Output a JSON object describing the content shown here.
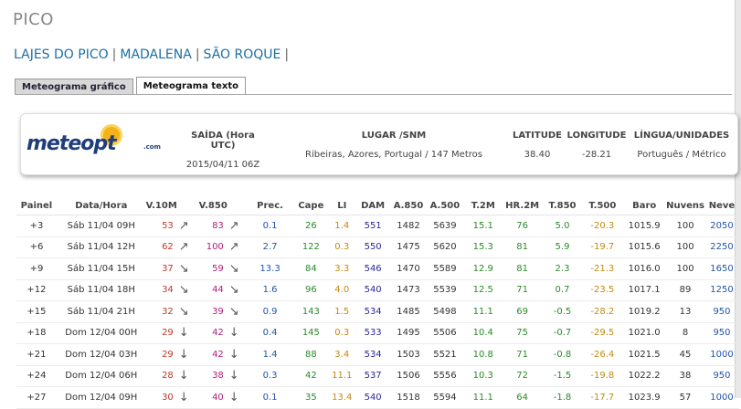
{
  "site_title": "PICO",
  "nav": {
    "items": [
      "LAJES DO PICO",
      "MADALENA",
      "SÃO ROQUE"
    ],
    "separator": "|"
  },
  "tabs": [
    {
      "label": "Meteograma gráfico",
      "active": false
    },
    {
      "label": "Meteograma texto",
      "active": true
    }
  ],
  "info": {
    "logo_text": "meteopt",
    "logo_suffix": ".com",
    "saida_label": "SAÍDA (Hora UTC)",
    "saida_value": "2015/04/11 06Z",
    "lugar_label": "LUGAR /SNM",
    "lugar_value": "Ribeiras, Azores, Portugal / 147 Metros",
    "lat_label": "LATITUDE",
    "lat_value": "38.40",
    "lon_label": "LONGITUDE",
    "lon_value": "-28.21",
    "lang_label": "LÍNGUA/UNIDADES",
    "lang_value": "Português / Métrico"
  },
  "table": {
    "headers": [
      "Painel",
      "Data/Hora",
      "V.10M",
      "",
      "V.850",
      "",
      "Prec.",
      "Cape",
      "LI",
      "DAM",
      "A.850",
      "A.500",
      "T.2M",
      "HR.2M",
      "T.850",
      "T.500",
      "Baro",
      "Nuvens",
      "Neve"
    ],
    "rows": [
      {
        "painel": "+3",
        "data": "Sáb 11/04 09H",
        "v10": "53",
        "v10_arrow": "↗",
        "v850": "83",
        "v850_arrow": "↗",
        "prec": "0.1",
        "cape": "26",
        "li": "1.4",
        "dam": "551",
        "a850": "1482",
        "a500": "5639",
        "t2m": "15.1",
        "hr": "76",
        "t850": "5.0",
        "t500": "-20.3",
        "baro": "1015.9",
        "nuvens": "100",
        "neve": "2050"
      },
      {
        "painel": "+6",
        "data": "Sáb 11/04 12H",
        "v10": "62",
        "v10_arrow": "↗",
        "v850": "100",
        "v850_arrow": "↗",
        "prec": "2.7",
        "cape": "122",
        "li": "0.3",
        "dam": "550",
        "a850": "1475",
        "a500": "5620",
        "t2m": "15.3",
        "hr": "81",
        "t850": "5.9",
        "t500": "-19.7",
        "baro": "1015.6",
        "nuvens": "100",
        "neve": "2250"
      },
      {
        "painel": "+9",
        "data": "Sáb 11/04 15H",
        "v10": "37",
        "v10_arrow": "↘",
        "v850": "59",
        "v850_arrow": "↘",
        "prec": "13.3",
        "cape": "84",
        "li": "3.3",
        "dam": "546",
        "a850": "1470",
        "a500": "5589",
        "t2m": "12.9",
        "hr": "81",
        "t850": "2.3",
        "t500": "-21.3",
        "baro": "1016.0",
        "nuvens": "100",
        "neve": "1650"
      },
      {
        "painel": "+12",
        "data": "Sáb 11/04 18H",
        "v10": "34",
        "v10_arrow": "↘",
        "v850": "44",
        "v850_arrow": "↘",
        "prec": "1.6",
        "cape": "96",
        "li": "4.0",
        "dam": "540",
        "a850": "1473",
        "a500": "5539",
        "t2m": "12.5",
        "hr": "71",
        "t850": "0.7",
        "t500": "-23.5",
        "baro": "1017.1",
        "nuvens": "89",
        "neve": "1250"
      },
      {
        "painel": "+15",
        "data": "Sáb 11/04 21H",
        "v10": "32",
        "v10_arrow": "↘",
        "v850": "39",
        "v850_arrow": "↘",
        "prec": "0.9",
        "cape": "143",
        "li": "1.5",
        "dam": "534",
        "a850": "1485",
        "a500": "5498",
        "t2m": "11.1",
        "hr": "69",
        "t850": "-0.5",
        "t500": "-28.2",
        "baro": "1019.2",
        "nuvens": "13",
        "neve": "950"
      },
      {
        "painel": "+18",
        "data": "Dom 12/04 00H",
        "v10": "29",
        "v10_arrow": "↓",
        "v850": "42",
        "v850_arrow": "↓",
        "prec": "0.4",
        "cape": "145",
        "li": "0.3",
        "dam": "533",
        "a850": "1495",
        "a500": "5506",
        "t2m": "10.4",
        "hr": "75",
        "t850": "-0.7",
        "t500": "-29.5",
        "baro": "1021.0",
        "nuvens": "8",
        "neve": "950"
      },
      {
        "painel": "+21",
        "data": "Dom 12/04 03H",
        "v10": "29",
        "v10_arrow": "↓",
        "v850": "42",
        "v850_arrow": "↓",
        "prec": "1.4",
        "cape": "88",
        "li": "3.4",
        "dam": "534",
        "a850": "1503",
        "a500": "5521",
        "t2m": "10.8",
        "hr": "71",
        "t850": "-0.8",
        "t500": "-26.4",
        "baro": "1021.5",
        "nuvens": "45",
        "neve": "1000"
      },
      {
        "painel": "+24",
        "data": "Dom 12/04 06H",
        "v10": "28",
        "v10_arrow": "↓",
        "v850": "38",
        "v850_arrow": "↓",
        "prec": "0.3",
        "cape": "42",
        "li": "11.1",
        "dam": "537",
        "a850": "1506",
        "a500": "5556",
        "t2m": "10.3",
        "hr": "72",
        "t850": "-1.5",
        "t500": "-19.8",
        "baro": "1022.2",
        "nuvens": "38",
        "neve": "950"
      },
      {
        "painel": "+27",
        "data": "Dom 12/04 09H",
        "v10": "30",
        "v10_arrow": "↓",
        "v850": "40",
        "v850_arrow": "↓",
        "prec": "0.1",
        "cape": "35",
        "li": "13.4",
        "dam": "540",
        "a850": "1518",
        "a500": "5594",
        "t2m": "11.1",
        "hr": "64",
        "t850": "-1.8",
        "t500": "-17.7",
        "baro": "1023.9",
        "nuvens": "57",
        "neve": "1000"
      }
    ]
  },
  "colors": {
    "v10": "#c0392b",
    "v850": "#b0207a",
    "prec": "#2255aa",
    "cape": "#2a8a2a",
    "li": "#c48a10",
    "dam": "#2a2a9a",
    "t2m": "#2a8a2a",
    "hr": "#2a8a2a",
    "t850": "#2a8a2a",
    "t500": "#c48a10",
    "neve": "#2255aa"
  }
}
